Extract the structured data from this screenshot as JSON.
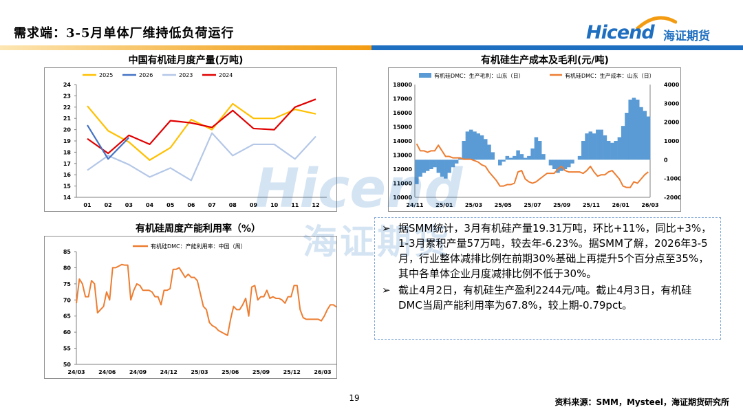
{
  "header": {
    "title": "需求端：3-5月单体厂维持低负荷运行",
    "logo_en": "Hicend",
    "logo_cn": "海证期货"
  },
  "watermark": {
    "en": "Hicend",
    "cn": "海证期货"
  },
  "colors": {
    "y2025": "#ffc000",
    "y2026": "#4472c4",
    "y2023": "#b4c7e7",
    "y2024": "#e00000",
    "margin_bar": "#5b9bd5",
    "cost_line": "#ed7d31",
    "util_line": "#ed7d31",
    "brand_blue": "#1f6fc0"
  },
  "chart_data": [
    {
      "type": "line",
      "title": "中国有机硅月度产量(万吨)",
      "categories": [
        "01",
        "02",
        "03",
        "04",
        "05",
        "06",
        "07",
        "08",
        "09",
        "10",
        "11",
        "12"
      ],
      "ylim": [
        14,
        24
      ],
      "yticks": [
        "14",
        "15",
        "16",
        "17",
        "18",
        "19",
        "20",
        "21",
        "22",
        "23",
        "24"
      ],
      "legend_position": "top",
      "series": [
        {
          "name": "2025",
          "values": [
            22.1,
            19.9,
            18.9,
            17.3,
            18.4,
            20.9,
            20.0,
            22.3,
            21.0,
            21.0,
            21.8,
            21.4
          ]
        },
        {
          "name": "2026",
          "values": [
            20.4,
            17.4,
            19.3,
            null,
            null,
            null,
            null,
            null,
            null,
            null,
            null,
            null
          ]
        },
        {
          "name": "2023",
          "values": [
            16.4,
            17.7,
            16.9,
            15.8,
            16.6,
            15.5,
            19.7,
            17.7,
            18.7,
            18.7,
            17.4,
            19.4
          ]
        },
        {
          "name": "2024",
          "values": [
            19.2,
            17.9,
            19.5,
            18.7,
            20.8,
            20.6,
            20.2,
            21.7,
            20.1,
            20.0,
            22.0,
            22.7
          ]
        }
      ]
    },
    {
      "type": "bar+line",
      "title": "有机硅生产成本及毛利(元/吨)",
      "legend": [
        "有机硅DMC：生产毛利：山东（日）",
        "有机硅DMC：生产成本：山东（日）"
      ],
      "legend_position": "top",
      "x_ticks": [
        "24/11",
        "25/01",
        "25/03",
        "25/05",
        "25/07",
        "25/09",
        "25/11",
        "26/01",
        "26/03"
      ],
      "left_axis": {
        "ylim": [
          10000,
          18000
        ],
        "ticks": [
          "10000",
          "11000",
          "12000",
          "13000",
          "14000",
          "15000",
          "16000",
          "17000",
          "18000"
        ]
      },
      "right_axis": {
        "ylim": [
          -2000,
          4000
        ],
        "ticks": [
          "-2000",
          "-1000",
          "0",
          "1000",
          "2000",
          "3000",
          "4000"
        ]
      },
      "series": [
        {
          "name": "有机硅DMC：生产毛利：山东（日）",
          "axis": "right",
          "type": "bar",
          "values": [
            -1300,
            -900,
            -700,
            -600,
            -500,
            -400,
            -700,
            -900,
            -1000,
            -700,
            -400,
            -200,
            100,
            1000,
            1500,
            1600,
            1500,
            1400,
            1300,
            1100,
            800,
            400,
            0,
            -300,
            -100,
            200,
            100,
            200,
            500,
            300,
            100,
            200,
            600,
            1200,
            1000,
            300,
            0,
            -300,
            -500,
            -700,
            -600,
            -500,
            -400,
            -200,
            0,
            200,
            1000,
            1400,
            1500,
            1400,
            1600,
            1600,
            1300,
            1000,
            900,
            1000,
            1200,
            1800,
            2500,
            3200,
            3300,
            3200,
            2800,
            2600,
            2300
          ]
        },
        {
          "name": "有机硅DMC：生产成本：山东（日）",
          "axis": "left",
          "type": "line",
          "values": [
            13800,
            13300,
            13300,
            13200,
            13300,
            13300,
            13700,
            13300,
            12900,
            12900,
            12800,
            12800,
            12800,
            12700,
            12700,
            12700,
            12600,
            12500,
            12300,
            12200,
            11800,
            11500,
            11200,
            10800,
            10800,
            10900,
            10900,
            11000,
            11800,
            11900,
            11300,
            11100,
            11000,
            11100,
            11300,
            11500,
            11700,
            11700,
            11700,
            12000,
            12200,
            11900,
            11800,
            11800,
            11800,
            11800,
            11700,
            11900,
            12200,
            11800,
            11500,
            11600,
            11600,
            11800,
            11900,
            11600,
            11300,
            10800,
            10700,
            10700,
            11100,
            11000,
            11300,
            11600,
            11800
          ]
        }
      ]
    },
    {
      "type": "line",
      "title": "有机硅周度产能利用率（%）",
      "legend": [
        "有机硅DMC：产能利用率：中国（周）"
      ],
      "legend_position": "top",
      "x_ticks": [
        "24/03",
        "24/06",
        "24/09",
        "24/12",
        "25/03",
        "25/06",
        "25/09",
        "25/12",
        "26/03"
      ],
      "ylim": [
        50,
        85
      ],
      "yticks": [
        "50",
        "55",
        "60",
        "65",
        "70",
        "75",
        "80",
        "85"
      ],
      "series": [
        {
          "name": "有机硅DMC：产能利用率：中国（周）",
          "values": [
            69,
            76.5,
            75,
            71,
            71,
            76,
            75,
            66,
            67,
            68,
            72.5,
            70,
            80,
            80,
            80.5,
            81,
            80.8,
            80.8,
            70,
            73,
            75,
            74.5,
            73,
            73,
            73,
            72.5,
            71,
            71,
            68.5,
            73,
            73,
            73.5,
            79.5,
            79.5,
            80,
            78.5,
            77,
            78,
            77,
            77,
            76,
            72,
            68,
            67,
            63,
            62,
            61.5,
            60.5,
            60,
            59.5,
            59,
            64,
            68,
            67,
            67,
            68.5,
            70.5,
            65,
            74,
            74.5,
            70,
            71,
            71,
            73,
            70.5,
            71,
            70.5,
            70.5,
            70,
            69,
            71,
            71,
            74.5,
            74.5,
            67,
            64.5,
            64,
            64,
            64,
            64,
            64,
            63.5,
            65,
            67,
            68.5,
            68.5,
            67.8
          ]
        }
      ]
    }
  ],
  "text_box": {
    "bullets": [
      "据SMM统计，3月有机硅产量19.31万吨，环比+11%，同比+3%，1-3月累积产量57万吨，较去年-6.23%。据SMM了解，2026年3-5月，行业整体减排比例在前期30%基础上再提升5个百分点至35%，其中各单体企业月度减排比例不低于30%。",
      "截止4月2日，有机硅生产盈利2244元/吨。截止4月3日，有机硅DMC当周产能利用率为67.8%，较上期-0.79pct。"
    ],
    "bullet_symbol": "➢"
  },
  "footer": {
    "page_number": "19",
    "source": "资料来源：SMM，Mysteel，海证期货研究所"
  }
}
